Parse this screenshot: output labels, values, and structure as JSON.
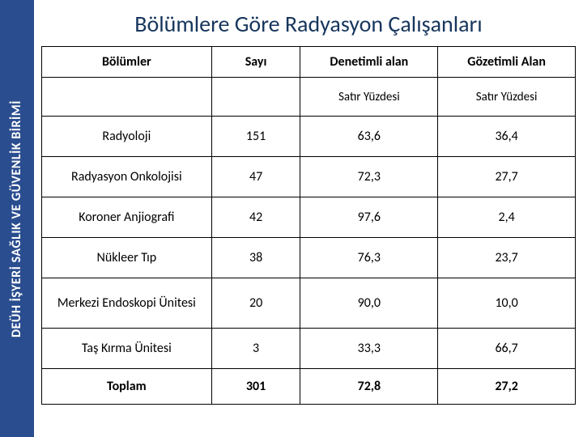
{
  "sidebar": {
    "label": "DEÜH İŞYERİ SAĞLIK VE GÜVENLİK BİRİMİ"
  },
  "title": "Bölümlere Göre Radyasyon Çalışanları",
  "table": {
    "headers": {
      "col1": "Bölümler",
      "col2": "Sayı",
      "col3": "Denetimli alan",
      "col4": "Gözetimli Alan"
    },
    "subheaders": {
      "col1": "",
      "col2": "",
      "col3": "Satır Yüzdesi",
      "col4": "Satır Yüzdesi"
    },
    "rows": [
      {
        "dept": "Radyoloji",
        "count": "151",
        "controlled": "63,6",
        "supervised": "36,4"
      },
      {
        "dept": "Radyasyon Onkolojisi",
        "count": "47",
        "controlled": "72,3",
        "supervised": "27,7"
      },
      {
        "dept": "Koroner Anjiografi",
        "count": "42",
        "controlled": "97,6",
        "supervised": "2,4"
      },
      {
        "dept": "Nükleer Tıp",
        "count": "38",
        "controlled": "76,3",
        "supervised": "23,7"
      },
      {
        "dept": "Merkezi Endoskopi Ünitesi",
        "count": "20",
        "controlled": "90,0",
        "supervised": "10,0"
      },
      {
        "dept": "Taş Kırma Ünitesi",
        "count": "3",
        "controlled": "33,3",
        "supervised": "66,7"
      }
    ],
    "total": {
      "label": "Toplam",
      "count": "301",
      "controlled": "72,8",
      "supervised": "27,2"
    }
  },
  "colors": {
    "sidebar_bg": "#2a4d8f",
    "sidebar_text": "#ffffff",
    "title_text": "#17365d",
    "border": "#000000",
    "background": "#ffffff"
  }
}
